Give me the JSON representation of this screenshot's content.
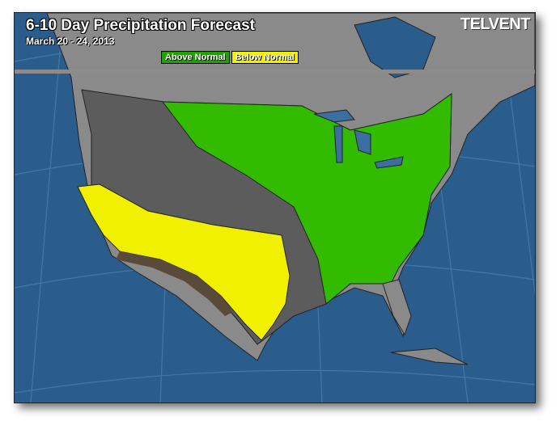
{
  "title": "6-10 Day Precipitation Forecast",
  "subtitle": "March 20 - 24, 2013",
  "logo": "TELVENT",
  "legend": [
    {
      "label": "Above Normal",
      "color": "#22a000"
    },
    {
      "label": "Below Normal",
      "color": "#f0f000"
    }
  ],
  "colors": {
    "ocean": "#2b5d8c",
    "land": "#8a8a8a",
    "normal": "#5c5c5c",
    "above": "#33bb00",
    "below": "#f0f000"
  }
}
